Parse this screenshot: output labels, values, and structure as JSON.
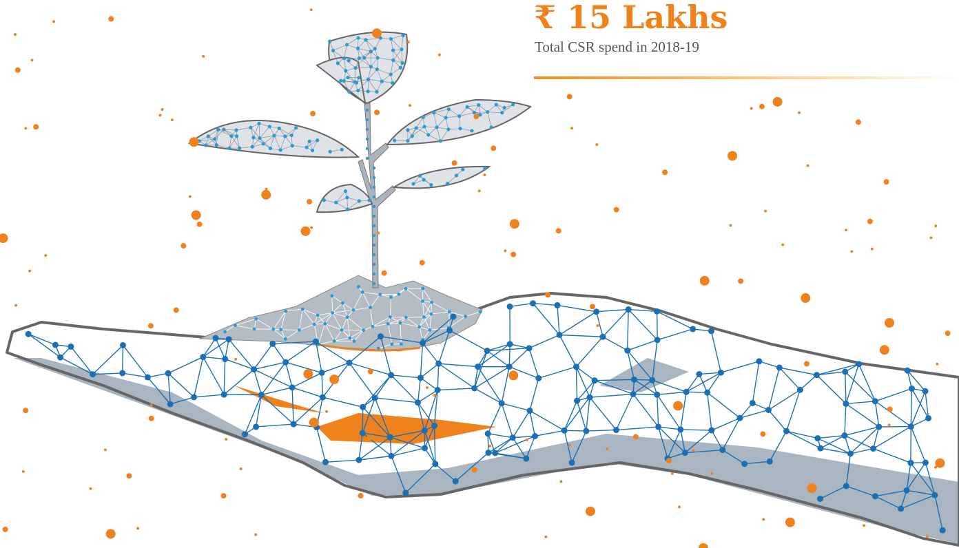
{
  "headline": "₹ 15 Lakhs",
  "caption": "Total CSR spend in 2018-19"
}
